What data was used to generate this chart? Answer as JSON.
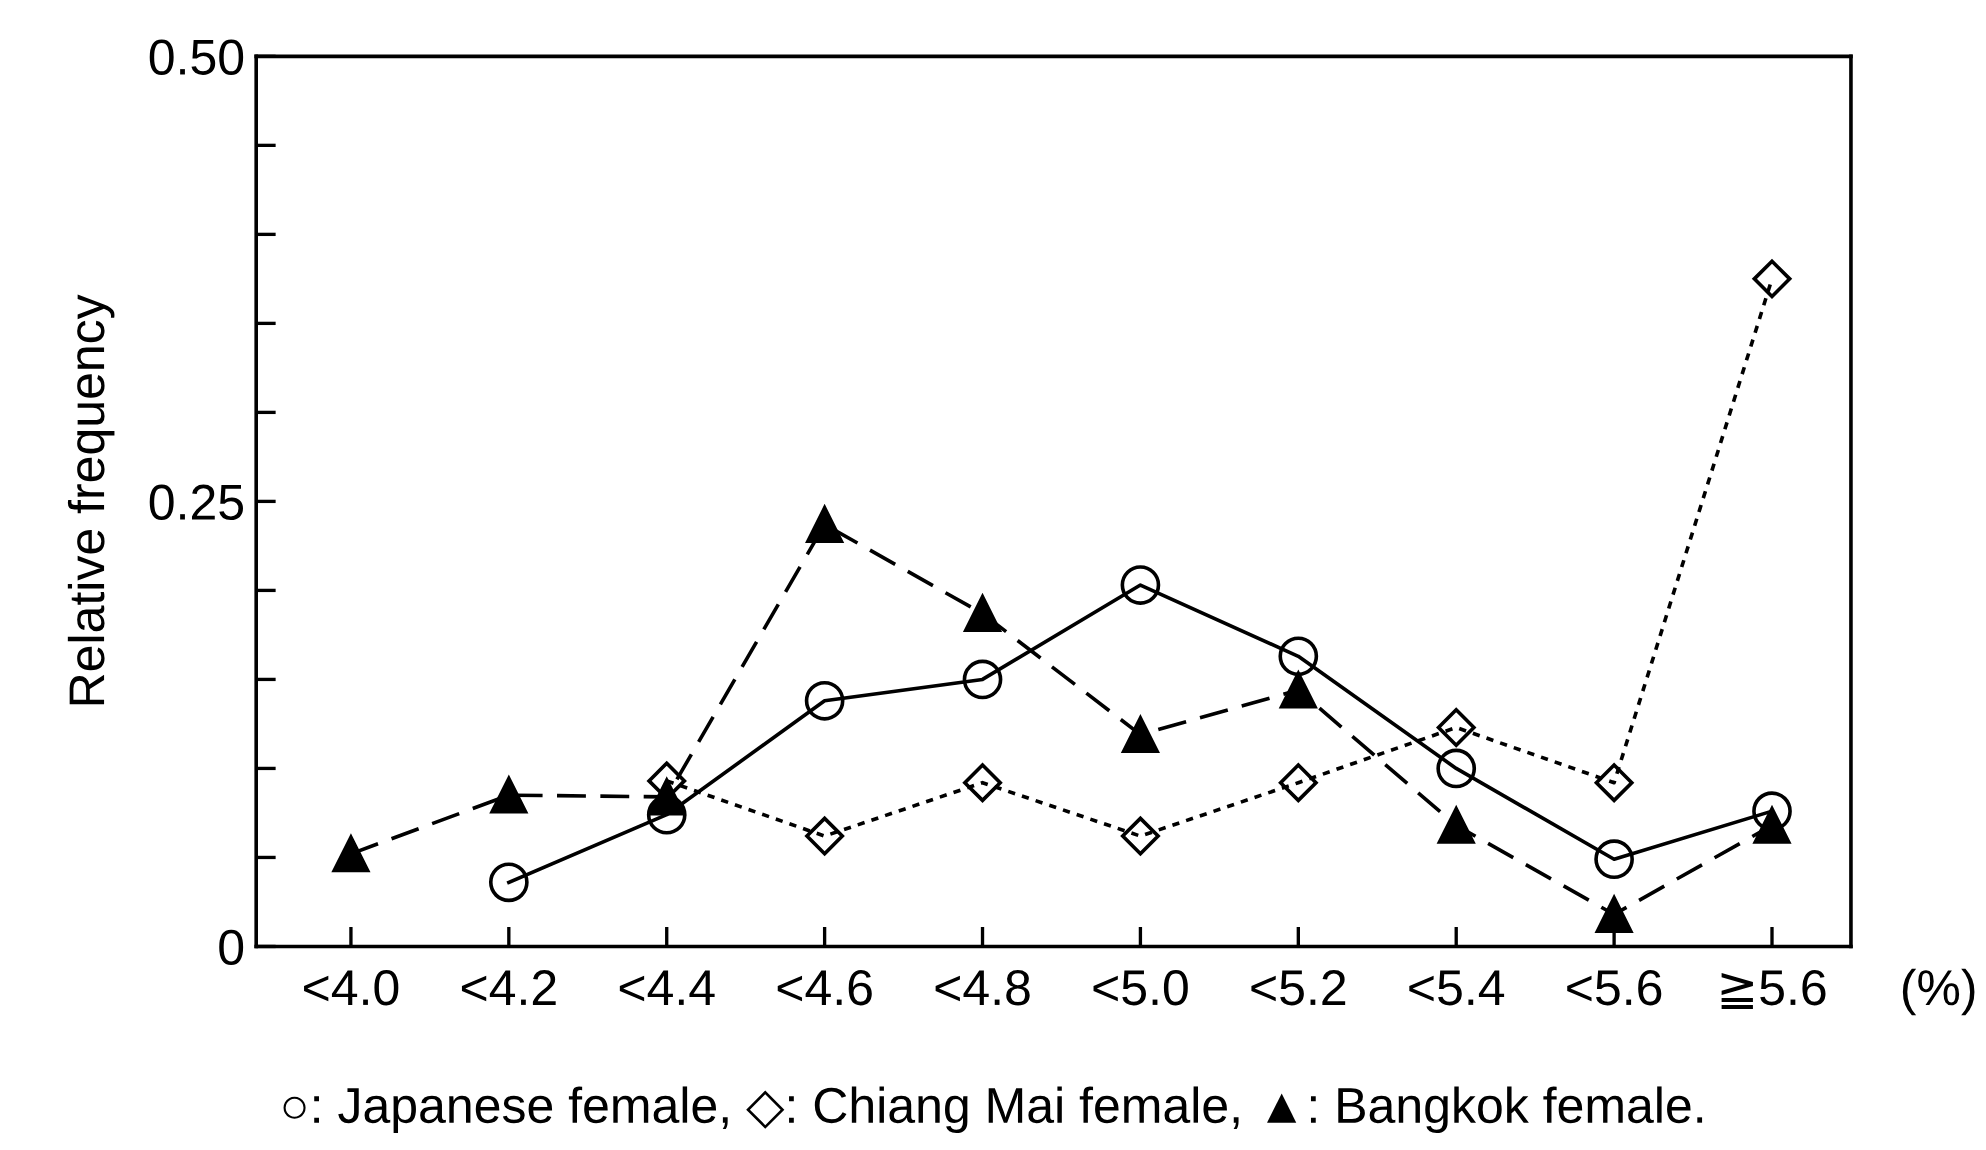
{
  "chart_data": {
    "type": "line",
    "categories": [
      "<4.0",
      "<4.2",
      "<4.4",
      "<4.6",
      "<4.8",
      "<5.0",
      "<5.2",
      "<5.4",
      "<5.6",
      "≧5.6"
    ],
    "xlabel": "(%)",
    "ylabel": "Relative frequency",
    "series": [
      {
        "color": "#000000",
        "marker": "circle",
        "line_style": "solid",
        "values": [
          null,
          0.036,
          0.074,
          0.138,
          0.15,
          0.203,
          0.163,
          0.1,
          0.049,
          0.076
        ]
      },
      {
        "color": "#000000",
        "marker": "diamond",
        "line_style": "dotted",
        "values": [
          null,
          null,
          0.093,
          0.062,
          0.092,
          0.062,
          0.092,
          0.123,
          0.092,
          0.375
        ]
      },
      {
        "color": "#000000",
        "marker": "triangle",
        "line_style": "dashed",
        "values": [
          0.052,
          0.085,
          0.084,
          0.237,
          0.187,
          0.119,
          0.144,
          0.068,
          0.018,
          0.068
        ]
      }
    ],
    "ylim": [
      0,
      0.5
    ],
    "yticks": [
      0,
      {
        "value": 0.05,
        "label": null
      },
      {
        "value": 0.1,
        "label": null
      },
      {
        "value": 0.15,
        "label": null
      },
      {
        "value": 0.2,
        "label": null
      },
      0.25,
      {
        "value": 0.3,
        "label": null
      },
      {
        "value": 0.35,
        "label": null
      },
      {
        "value": 0.4,
        "label": null
      },
      {
        "value": 0.45,
        "label": null
      },
      {
        "value": 0.5,
        "label": "0.50"
      }
    ],
    "grid": false,
    "annotations": [
      "○: Japanese female, ◇: Chiang Mai female, ▲: Bangkok female."
    ]
  }
}
